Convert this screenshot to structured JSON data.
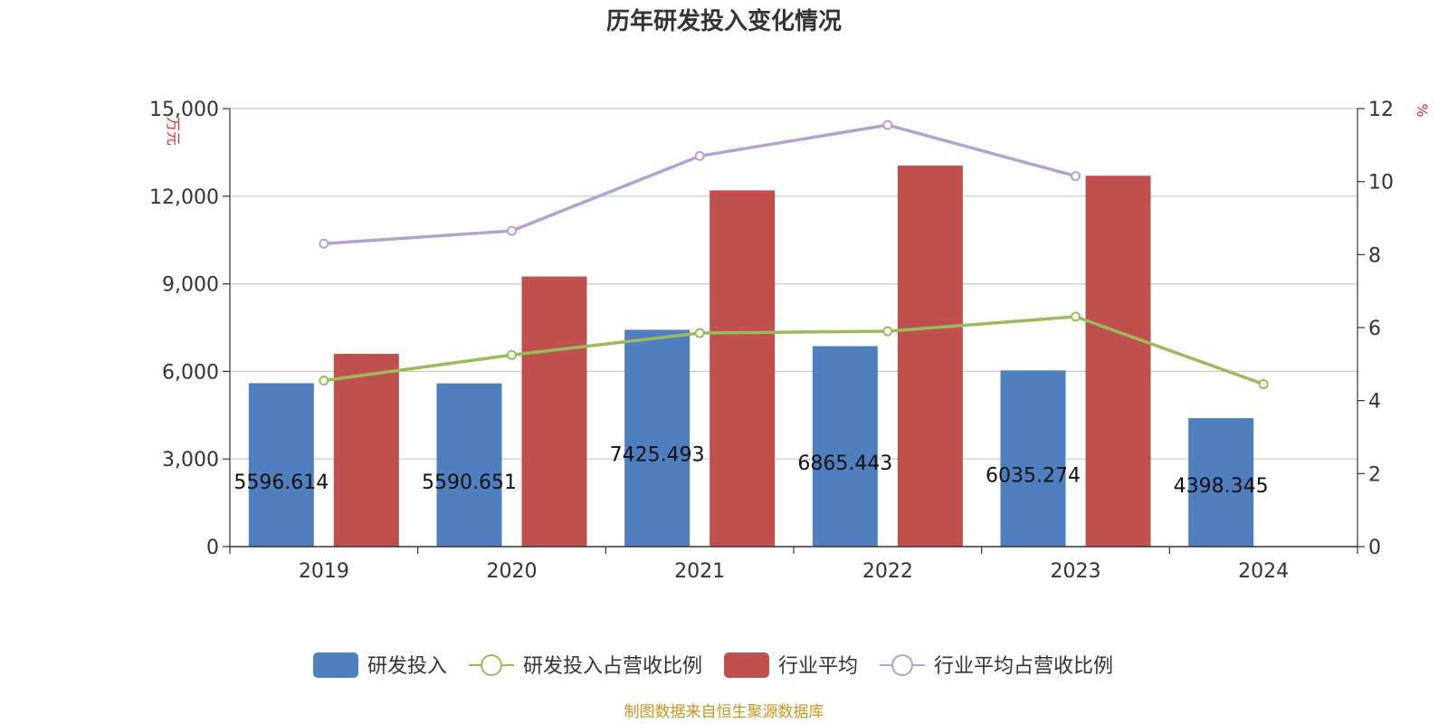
{
  "chart_data": {
    "type": "bar",
    "title": "历年研发投入变化情况",
    "categories": [
      "2019",
      "2020",
      "2021",
      "2022",
      "2023",
      "2024"
    ],
    "y_left": {
      "unit": "万元",
      "ylim": [
        0,
        15000
      ],
      "ticks": [
        0,
        3000,
        6000,
        9000,
        12000,
        15000
      ],
      "tick_labels": [
        "0",
        "3,000",
        "6,000",
        "9,000",
        "12,000",
        "15,000"
      ]
    },
    "y_right": {
      "unit": "%",
      "ylim": [
        0,
        12
      ],
      "ticks": [
        0,
        2,
        4,
        6,
        8,
        10,
        12
      ],
      "tick_labels": [
        "0",
        "2",
        "4",
        "6",
        "8",
        "10",
        "12"
      ]
    },
    "grid": true,
    "legend_position": "bottom",
    "series": [
      {
        "name": "研发投入",
        "type": "bar",
        "axis": "left",
        "color": "#4f7fbf",
        "values": [
          5596.614,
          5590.651,
          7425.493,
          6865.443,
          6035.274,
          4398.345
        ],
        "labels": [
          "5596.614",
          "5590.651",
          "7425.493",
          "6865.443",
          "6035.274",
          "4398.345"
        ]
      },
      {
        "name": "研发投入占营收比例",
        "type": "line",
        "axis": "right",
        "color": "#9bbb59",
        "values": [
          4.55,
          5.25,
          5.85,
          5.9,
          6.3,
          4.45
        ]
      },
      {
        "name": "行业平均",
        "type": "bar",
        "axis": "left",
        "color": "#c0504d",
        "values": [
          6600,
          9250,
          12200,
          13050,
          12700,
          null
        ]
      },
      {
        "name": "行业平均占营收比例",
        "type": "line",
        "axis": "right",
        "color": "#b3a2cf",
        "values": [
          8.3,
          8.65,
          10.7,
          11.55,
          10.15,
          null
        ]
      }
    ]
  },
  "source": "制图数据来自恒生聚源数据库"
}
